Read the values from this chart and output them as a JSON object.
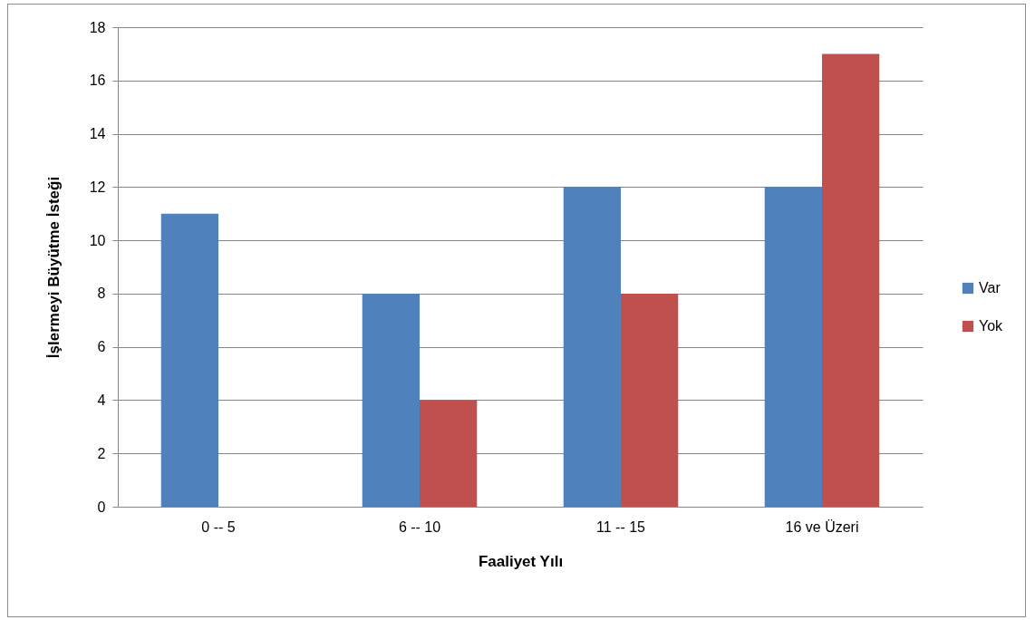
{
  "chart_data": {
    "type": "bar",
    "xlabel": "Faaliyet Yılı",
    "ylabel": "İşlermeyi Büyütme İsteği",
    "categories": [
      "0 -- 5",
      "6 -- 10",
      "11 -- 15",
      "16 ve Üzeri"
    ],
    "series": [
      {
        "name": "Var",
        "color": "#4f81bd",
        "values": [
          11,
          8,
          12,
          12
        ]
      },
      {
        "name": "Yok",
        "color": "#c0504d",
        "values": [
          0,
          4,
          8,
          17
        ]
      }
    ],
    "ylim": [
      0,
      18
    ],
    "yticks": [
      0,
      2,
      4,
      6,
      8,
      10,
      12,
      14,
      16,
      18
    ],
    "grid": "y",
    "legend": "right"
  }
}
